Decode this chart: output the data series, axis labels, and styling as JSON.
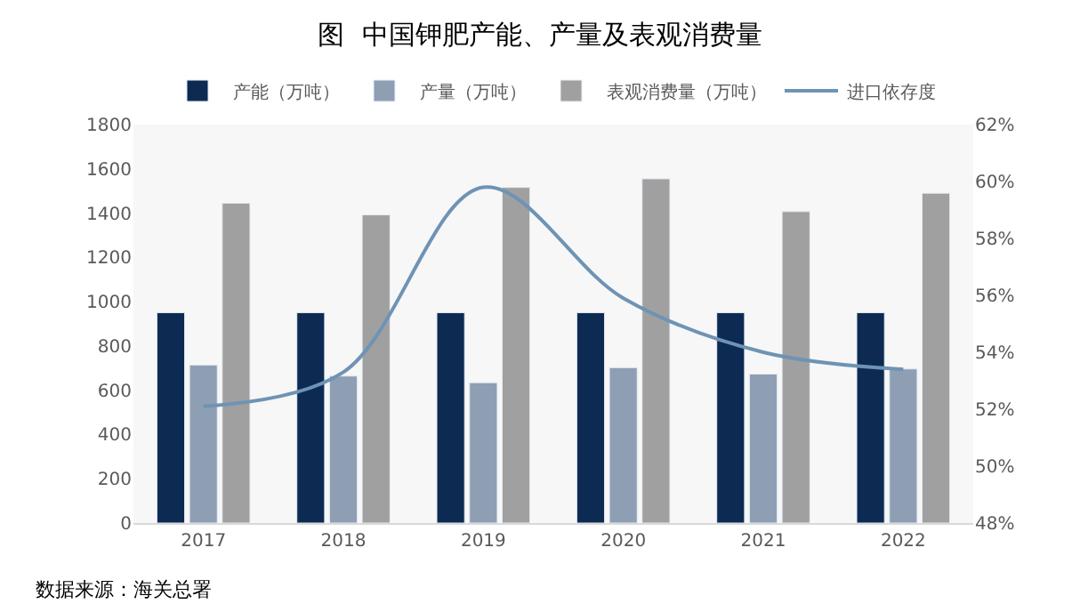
{
  "chart_data": {
    "type": "bar",
    "title": "图  中国钾肥产能、产量及表观消费量",
    "categories": [
      "2017",
      "2018",
      "2019",
      "2020",
      "2021",
      "2022"
    ],
    "series": [
      {
        "name": "产能（万吨）",
        "color": "#0d2a52",
        "values": [
          950,
          950,
          950,
          950,
          950,
          950
        ]
      },
      {
        "name": "产量（万吨）",
        "color": "#8e9fb4",
        "values": [
          714,
          664,
          634,
          702,
          673,
          696
        ]
      },
      {
        "name": "表观消费量（万吨）",
        "color": "#a0a0a0",
        "values": [
          1445,
          1392,
          1516,
          1555,
          1407,
          1490
        ]
      },
      {
        "name": "进口依存度",
        "color": "#6e93b4",
        "type": "line",
        "axis": "y2",
        "values": [
          52.1,
          53.3,
          59.8,
          55.9,
          54.0,
          53.4
        ]
      }
    ],
    "ylim": [
      0,
      1800
    ],
    "yticks": [
      0,
      200,
      400,
      600,
      800,
      1000,
      1200,
      1400,
      1600,
      1800
    ],
    "y2lim": [
      48,
      62
    ],
    "y2ticks": [
      {
        "value": 48,
        "label": "48%"
      },
      {
        "value": 50,
        "label": "50%"
      },
      {
        "value": 52,
        "label": "52%"
      },
      {
        "value": 54,
        "label": "54%"
      },
      {
        "value": 56,
        "label": "56%"
      },
      {
        "value": 58,
        "label": "58%"
      },
      {
        "value": 60,
        "label": "60%"
      },
      {
        "value": 62,
        "label": "62%"
      }
    ],
    "grid": false,
    "legend": "top",
    "marker": "none",
    "annotations": [
      "数据来源：海关总署"
    ]
  }
}
